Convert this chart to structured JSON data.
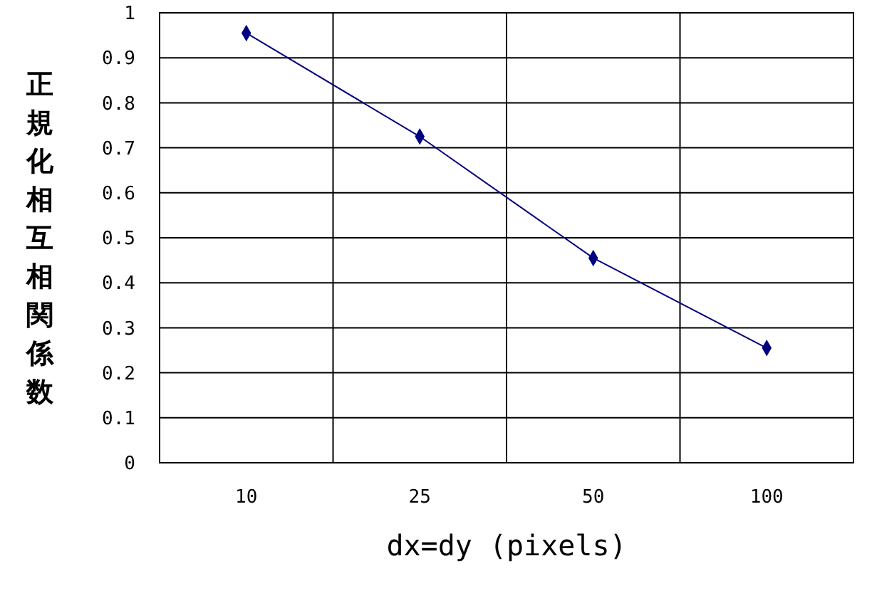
{
  "chart_data": {
    "type": "line",
    "xlabel": "dx=dy (pixels)",
    "ylabel": "正規化相互相関係数",
    "categories": [
      "10",
      "25",
      "50",
      "100"
    ],
    "series": [
      {
        "color": "#000080",
        "values": [
          0.955,
          0.725,
          0.455,
          0.255
        ]
      }
    ],
    "ylim": [
      0,
      1
    ],
    "yticks": [
      0,
      0.1,
      0.2,
      0.3,
      0.4,
      0.5,
      0.6,
      0.7,
      0.8,
      0.9,
      1
    ],
    "grid": true,
    "marker": "diamond"
  }
}
